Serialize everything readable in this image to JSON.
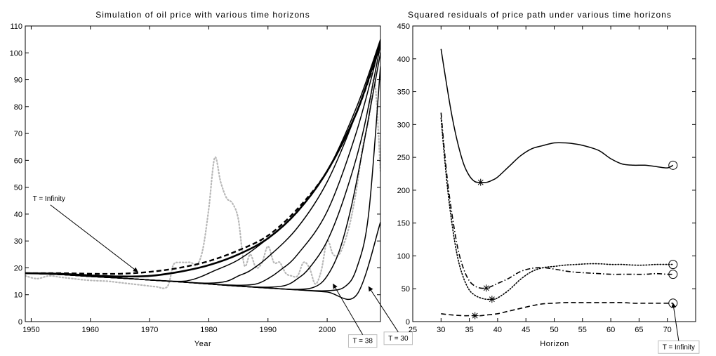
{
  "chart_data": [
    {
      "type": "line",
      "title": "Simulation of oil price with various time horizons",
      "xlabel": "Year",
      "ylabel": "",
      "xlim": [
        1949,
        2009
      ],
      "ylim": [
        0,
        110
      ],
      "xticks": [
        1950,
        1960,
        1970,
        1980,
        1990,
        2000
      ],
      "yticks": [
        0,
        10,
        20,
        30,
        40,
        50,
        60,
        70,
        80,
        90,
        100,
        110
      ],
      "grid": false,
      "annotations": [
        {
          "text": "T = Infinity",
          "x": 1953,
          "y": 45,
          "arrow_to": [
            1968,
            18.5
          ],
          "boxed": false
        },
        {
          "text": "T = 38",
          "x": 2006,
          "y": -8,
          "arrow_to": [
            2001,
            14
          ],
          "boxed": true
        },
        {
          "text": "T = 30",
          "x": 2012,
          "y": -7,
          "arrow_to": [
            2007,
            13
          ],
          "boxed": true
        }
      ],
      "series": [
        {
          "style": "dotted-gray",
          "x": [
            1949,
            1951,
            1953,
            1955,
            1957,
            1959,
            1961,
            1963,
            1965,
            1967,
            1969,
            1971,
            1973,
            1974,
            1975,
            1976,
            1977,
            1978,
            1979,
            1980,
            1981,
            1982,
            1983,
            1984,
            1985,
            1986,
            1987,
            1988,
            1989,
            1990,
            1991,
            1992,
            1993,
            1994,
            1995,
            1996,
            1997,
            1998,
            1999,
            2000,
            2001,
            2002,
            2003,
            2004,
            2005,
            2006,
            2007,
            2008,
            2009
          ],
          "y": [
            17,
            16,
            17,
            16.5,
            16,
            15.5,
            15.2,
            15,
            14.5,
            14,
            13.5,
            13,
            13,
            21,
            22,
            22,
            22,
            21,
            27,
            42,
            61,
            52,
            46,
            44,
            38,
            21,
            25,
            20,
            22,
            28,
            22,
            22,
            18,
            17,
            17,
            22,
            20,
            14,
            19,
            30,
            25,
            25,
            30,
            38,
            50,
            65,
            75,
            90,
            56
          ]
        },
        {
          "style": "solid",
          "x": [
            1949,
            1955,
            1960,
            1965,
            1970,
            1975,
            1980,
            1985,
            1990,
            1995,
            2000,
            2005,
            2009
          ],
          "y": [
            18,
            17.5,
            16.8,
            16.2,
            15.5,
            14.8,
            14,
            13.2,
            12.5,
            11.8,
            11,
            10,
            37
          ]
        },
        {
          "style": "solid",
          "x": [
            1949,
            1955,
            1960,
            1965,
            1970,
            1975,
            1980,
            1985,
            1990,
            1995,
            2000,
            2003,
            2005,
            2007,
            2009
          ],
          "y": [
            18,
            17.5,
            16.8,
            16.2,
            15.5,
            14.8,
            14,
            13.2,
            12.5,
            11.8,
            11.5,
            13,
            20,
            40,
            95
          ]
        },
        {
          "style": "solid",
          "x": [
            1949,
            1955,
            1960,
            1965,
            1970,
            1975,
            1980,
            1985,
            1990,
            1995,
            1998,
            2000,
            2002,
            2004,
            2006,
            2008,
            2009
          ],
          "y": [
            18,
            17.5,
            16.8,
            16.2,
            15.5,
            14.8,
            14,
            13.2,
            12.5,
            12,
            13,
            17,
            26,
            42,
            64,
            88,
            100
          ]
        },
        {
          "style": "solid",
          "x": [
            1949,
            1955,
            1960,
            1965,
            1970,
            1975,
            1980,
            1985,
            1990,
            1993,
            1995,
            1997,
            2000,
            2003,
            2006,
            2009
          ],
          "y": [
            18,
            17.5,
            16.8,
            16.2,
            15.5,
            14.8,
            14,
            13.2,
            12.8,
            13.5,
            16,
            20,
            30,
            47,
            70,
            103
          ]
        },
        {
          "style": "solid",
          "x": [
            1949,
            1955,
            1960,
            1965,
            1970,
            1975,
            1980,
            1985,
            1988,
            1990,
            1992,
            1995,
            2000,
            2005,
            2009
          ],
          "y": [
            18,
            17.5,
            16.8,
            16.2,
            15.5,
            14.8,
            14,
            13.5,
            14,
            16,
            19,
            25,
            41,
            71,
            104
          ]
        },
        {
          "style": "solid",
          "x": [
            1949,
            1955,
            1960,
            1965,
            1970,
            1975,
            1980,
            1983,
            1985,
            1987,
            1990,
            1995,
            2000,
            2005,
            2009
          ],
          "y": [
            18,
            17.5,
            16.8,
            16.2,
            15.5,
            14.8,
            14.3,
            15,
            17,
            19,
            24,
            35,
            52,
            78,
            104
          ]
        },
        {
          "style": "solid",
          "x": [
            1949,
            1955,
            1960,
            1965,
            1970,
            1975,
            1977,
            1979,
            1981,
            1985,
            1990,
            1995,
            2000,
            2005,
            2009
          ],
          "y": [
            18,
            17.5,
            16.8,
            16.2,
            15.5,
            15,
            15.5,
            17,
            19,
            23,
            31,
            41,
            56,
            80,
            105
          ]
        },
        {
          "style": "solid-thick",
          "x": [
            1949,
            1955,
            1960,
            1965,
            1970,
            1975,
            1980,
            1985,
            1990,
            1995,
            2000,
            2005,
            2009
          ],
          "y": [
            18,
            17.8,
            17.2,
            16.8,
            17,
            18.5,
            21,
            25,
            31,
            41,
            56,
            78,
            104
          ]
        },
        {
          "style": "dashed-thick",
          "x": [
            1949,
            1955,
            1960,
            1965,
            1970,
            1975,
            1980,
            1985,
            1990,
            1995,
            2000,
            2005,
            2009
          ],
          "y": [
            18,
            18,
            17.8,
            17.8,
            18.5,
            20,
            22.5,
            26.5,
            32,
            42,
            56,
            78,
            103
          ]
        }
      ]
    },
    {
      "type": "line",
      "title": "Squared residuals of price path under various time horizons",
      "xlabel": "Horizon",
      "ylabel": "",
      "xlim": [
        25,
        75
      ],
      "ylim": [
        0,
        450
      ],
      "xticks": [
        25,
        30,
        35,
        40,
        45,
        50,
        55,
        60,
        65,
        70
      ],
      "yticks": [
        0,
        50,
        100,
        150,
        200,
        250,
        300,
        350,
        400,
        450
      ],
      "grid": false,
      "annotations": [
        {
          "text": "T = Infinity",
          "x": 72,
          "y": -42,
          "arrow_to": [
            71,
            28
          ],
          "boxed": true
        }
      ],
      "series": [
        {
          "style": "solid",
          "x": [
            30,
            31,
            32,
            33,
            34,
            35,
            36,
            37,
            38,
            39,
            40,
            42,
            44,
            46,
            48,
            50,
            52,
            54,
            56,
            58,
            60,
            62,
            64,
            66,
            68,
            70,
            71
          ],
          "y": [
            415,
            360,
            310,
            270,
            240,
            222,
            213,
            212,
            212,
            215,
            220,
            236,
            252,
            263,
            268,
            272,
            272,
            270,
            266,
            260,
            248,
            240,
            238,
            238,
            236,
            234,
            238
          ],
          "min_marker": [
            37,
            212
          ],
          "end_marker": [
            71,
            238
          ]
        },
        {
          "style": "dashdot",
          "x": [
            30,
            31,
            32,
            33,
            34,
            35,
            36,
            37,
            38,
            39,
            40,
            42,
            44,
            46,
            48,
            50,
            52,
            54,
            56,
            58,
            60,
            62,
            64,
            66,
            68,
            70,
            71
          ],
          "y": [
            318,
            225,
            160,
            110,
            80,
            62,
            54,
            51,
            51,
            54,
            58,
            66,
            76,
            81,
            82,
            80,
            77,
            75,
            74,
            73,
            72,
            72,
            72,
            72,
            73,
            72,
            72
          ],
          "min_marker": [
            38,
            51
          ],
          "end_marker": [
            71,
            72
          ]
        },
        {
          "style": "dotted",
          "x": [
            30,
            31,
            32,
            33,
            34,
            35,
            36,
            37,
            38,
            39,
            40,
            42,
            44,
            46,
            48,
            50,
            52,
            54,
            56,
            58,
            60,
            62,
            64,
            66,
            68,
            70,
            71
          ],
          "y": [
            310,
            215,
            145,
            95,
            66,
            48,
            40,
            36,
            34,
            34,
            36,
            48,
            64,
            76,
            82,
            84,
            86,
            87,
            88,
            88,
            87,
            87,
            86,
            86,
            87,
            87,
            87
          ],
          "min_marker": [
            39,
            34
          ],
          "end_marker": [
            71,
            87
          ]
        },
        {
          "style": "dashed",
          "x": [
            30,
            32,
            34,
            35,
            36,
            37,
            38,
            40,
            42,
            44,
            46,
            48,
            50,
            52,
            54,
            56,
            58,
            60,
            62,
            64,
            66,
            68,
            70,
            71
          ],
          "y": [
            12,
            10,
            9,
            9,
            9,
            9,
            10,
            12,
            16,
            20,
            24,
            27,
            28,
            29,
            29,
            29,
            29,
            29,
            29,
            28,
            28,
            28,
            28,
            28
          ],
          "min_marker": [
            36,
            9
          ],
          "end_marker": [
            71,
            28
          ]
        }
      ]
    }
  ]
}
